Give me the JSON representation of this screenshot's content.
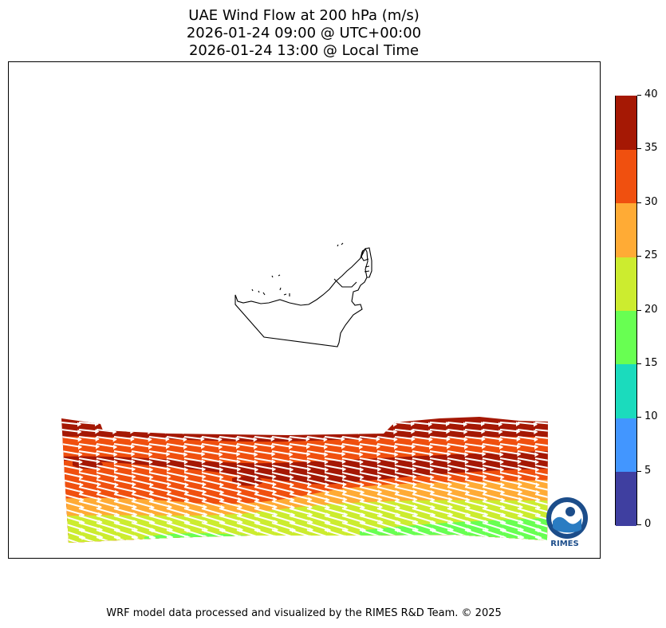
{
  "title": {
    "line1": "UAE Wind Flow at 200 hPa (m/s)",
    "line2": "2026-01-24 09:00 @ UTC+00:00",
    "line3": "2026-01-24 13:00 @ Local Time"
  },
  "colorbar": {
    "ticks": [
      "0",
      "5",
      "10",
      "15",
      "20",
      "25",
      "30",
      "35",
      "40"
    ],
    "colors": [
      "#3f3fa0",
      "#4296ff",
      "#1bdbbd",
      "#68ff52",
      "#ccec2f",
      "#ffab35",
      "#f0500f",
      "#a51804"
    ]
  },
  "logo": {
    "text": "RIMES"
  },
  "footer": {
    "credit": "WRF model data processed and visualized by the RIMES R&D Team. © 2025"
  }
}
